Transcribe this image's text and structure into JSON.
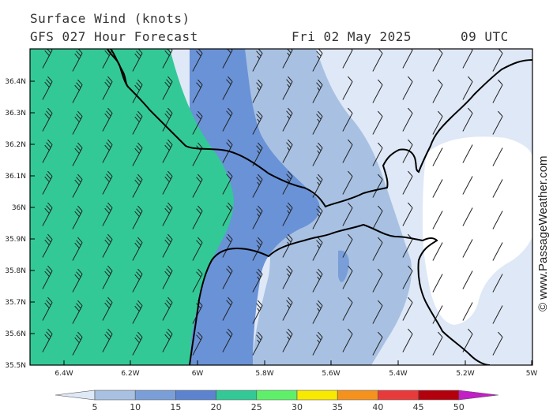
{
  "header": {
    "title": "Surface Wind (knots)",
    "model": "GFS 027 Hour Forecast",
    "date": "Fri 02 May 2025",
    "time": "09 UTC"
  },
  "axes": {
    "lat_labels": [
      "36.4N",
      "36.3N",
      "36.2N",
      "36.1N",
      "36N",
      "35.9N",
      "35.8N",
      "35.7N",
      "35.6N",
      "35.5N"
    ],
    "lon_labels": [
      "6.4W",
      "6.2W",
      "6W",
      "5.8W",
      "5.6W",
      "5.4W",
      "5.2W",
      "5W"
    ]
  },
  "legend": {
    "labels": [
      "5",
      "10",
      "15",
      "20",
      "25",
      "30",
      "35",
      "40",
      "45",
      "50"
    ],
    "colors": [
      "#dfe8f6",
      "#a8c1e2",
      "#7a9fd8",
      "#5b83cf",
      "#33c996",
      "#5ff06a",
      "#f7e900",
      "#f5921e",
      "#e83a3a",
      "#b3000c",
      "#c21fc7"
    ]
  },
  "zones": {
    "green": "#33c996",
    "blue_dark": "#6a92d6",
    "blue_mid": "#a8c1e2",
    "blue_light": "#dfe8f6",
    "calm": "#ffffff",
    "coast": "#000000"
  },
  "copyright": "© www.PassageWeather.com"
}
